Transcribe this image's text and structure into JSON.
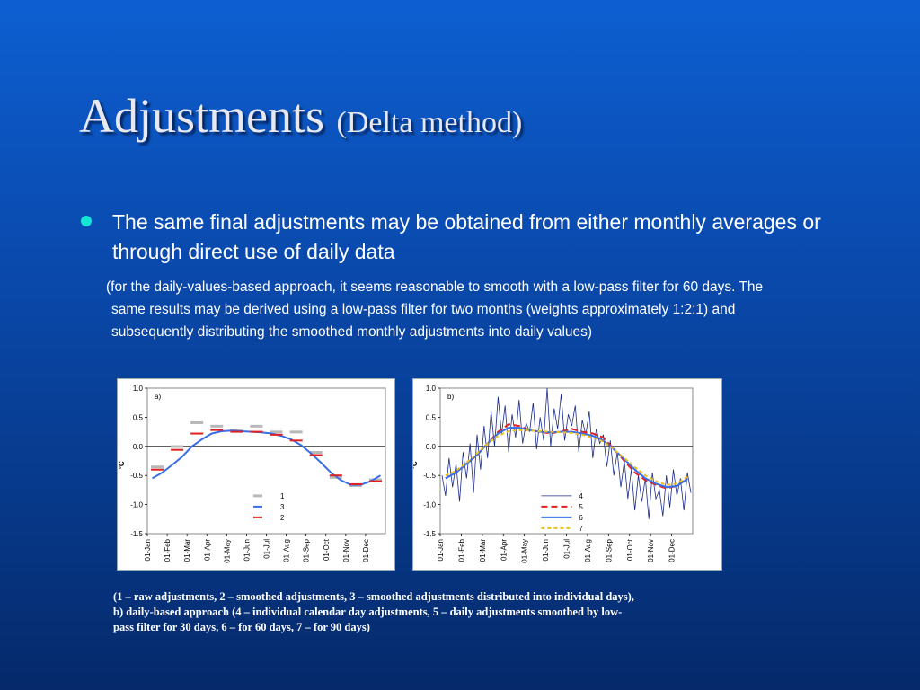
{
  "slide": {
    "title_main": "Adjustments",
    "title_sub": "(Delta method)",
    "bullet": "The same final adjustments may be obtained from either monthly averages or through direct use of daily data",
    "note_line1": "(for the daily-values-based approach, it seems reasonable to smooth with a low-pass filter for 60 days. The",
    "note_line2": "same results may be derived using a low-pass filter for two months (weights approximately 1:2:1) and",
    "note_line3": "subsequently distributing the smoothed monthly adjustments into daily values)",
    "caption": "(1 – raw adjustments, 2 – smoothed adjustments, 3 – smoothed adjustments distributed into individual days), b) daily-based approach (4 – individual calendar day adjustments, 5 – daily adjustments smoothed by low-pass filter for 30 days, 6 – for 60 days, 7 – for 90 days)",
    "colors": {
      "bullet": "#16e3d6",
      "background_top": "#0d5fd1",
      "background_bottom": "#05296a"
    }
  },
  "chart_data": [
    {
      "type": "line",
      "panel_label": "a)",
      "ylabel": "°C",
      "ylim": [
        -1.5,
        1.0
      ],
      "y_ticks": [
        "1.0",
        "0.5",
        "0.0",
        "-0.5",
        "-1.0",
        "-1.5"
      ],
      "x_tick_labels": [
        "01-Jan",
        "01-Feb",
        "01-Mar",
        "01-Apr",
        "01-May",
        "01-Jun",
        "01-Jul",
        "01-Aug",
        "01-Sep",
        "01-Oct",
        "01-Nov",
        "01-Dec"
      ],
      "legend_position": "bottom-center",
      "series": [
        {
          "name": "1",
          "style": "gray-dash",
          "color": "#b8b8b8",
          "values": [
            -0.4,
            -0.05,
            0.36,
            0.3,
            0.22,
            0.3,
            0.2,
            0.2,
            -0.15,
            -0.58,
            -0.72,
            -0.62
          ]
        },
        {
          "name": "3",
          "style": "line",
          "color": "#3a6ee8",
          "values": [
            -0.55,
            -0.45,
            -0.32,
            -0.18,
            0.0,
            0.12,
            0.22,
            0.26,
            0.27,
            0.26,
            0.25,
            0.24,
            0.22,
            0.18,
            0.12,
            0.02,
            -0.12,
            -0.28,
            -0.45,
            -0.58,
            -0.66,
            -0.66,
            -0.6,
            -0.5
          ]
        },
        {
          "name": "2",
          "style": "red-dash",
          "color": "#e02020",
          "values": [
            -0.4,
            -0.06,
            0.22,
            0.28,
            0.25,
            0.25,
            0.2,
            0.1,
            -0.15,
            -0.5,
            -0.65,
            -0.6
          ]
        }
      ]
    },
    {
      "type": "line",
      "panel_label": "b)",
      "ylabel": "°C",
      "ylim": [
        -1.5,
        1.0
      ],
      "y_ticks": [
        "1.0",
        "0.5",
        "0.0",
        "-0.5",
        "-1.0",
        "-1.5"
      ],
      "x_tick_labels": [
        "01-Jan",
        "01-Feb",
        "01-Mar",
        "01-Apr",
        "01-May",
        "01-Jun",
        "01-Jul",
        "01-Aug",
        "01-Sep",
        "01-Oct",
        "01-Nov",
        "01-Dec"
      ],
      "legend_position": "bottom-center",
      "series": [
        {
          "name": "4",
          "style": "thin-line",
          "color": "#1a2a8a",
          "values": [
            -0.5,
            -0.85,
            -0.2,
            -0.7,
            -0.3,
            -0.95,
            -0.1,
            -0.55,
            0.05,
            -0.8,
            0.2,
            -0.4,
            0.35,
            -0.2,
            0.6,
            0.0,
            0.85,
            0.2,
            0.7,
            -0.1,
            0.55,
            0.15,
            0.8,
            0.05,
            0.4,
            0.25,
            0.75,
            -0.05,
            0.5,
            0.1,
            1.0,
            0.0,
            0.65,
            0.3,
            0.9,
            0.1,
            0.55,
            0.35,
            0.7,
            -0.1,
            0.45,
            0.2,
            0.6,
            -0.2,
            0.3,
            0.05,
            0.2,
            -0.35,
            0.1,
            -0.5,
            -0.1,
            -0.7,
            -0.25,
            -0.9,
            -0.4,
            -1.1,
            -0.5,
            -0.95,
            -0.55,
            -1.25,
            -0.45,
            -0.9,
            -0.75,
            -1.2,
            -0.5,
            -1.05,
            -0.4,
            -0.85,
            -0.55,
            -1.1,
            -0.45,
            -0.8
          ]
        },
        {
          "name": "5",
          "style": "red-dash",
          "color": "#e02020",
          "values": [
            -0.55,
            -0.45,
            -0.3,
            -0.15,
            0.05,
            0.25,
            0.38,
            0.35,
            0.28,
            0.25,
            0.22,
            0.26,
            0.3,
            0.25,
            0.22,
            0.15,
            -0.05,
            -0.25,
            -0.45,
            -0.58,
            -0.66,
            -0.72,
            -0.68,
            -0.55
          ]
        },
        {
          "name": "6",
          "style": "line",
          "color": "#3a6ee8",
          "values": [
            -0.55,
            -0.45,
            -0.3,
            -0.15,
            0.05,
            0.22,
            0.32,
            0.32,
            0.28,
            0.25,
            0.24,
            0.25,
            0.25,
            0.22,
            0.18,
            0.1,
            -0.05,
            -0.22,
            -0.4,
            -0.55,
            -0.64,
            -0.7,
            -0.68,
            -0.56
          ]
        },
        {
          "name": "7",
          "style": "yellow-dash",
          "color": "#e8c020",
          "values": [
            -0.5,
            -0.42,
            -0.28,
            -0.12,
            0.05,
            0.18,
            0.26,
            0.28,
            0.27,
            0.26,
            0.25,
            0.24,
            0.23,
            0.2,
            0.15,
            0.08,
            -0.05,
            -0.2,
            -0.36,
            -0.5,
            -0.6,
            -0.66,
            -0.64,
            -0.52
          ]
        }
      ]
    }
  ]
}
